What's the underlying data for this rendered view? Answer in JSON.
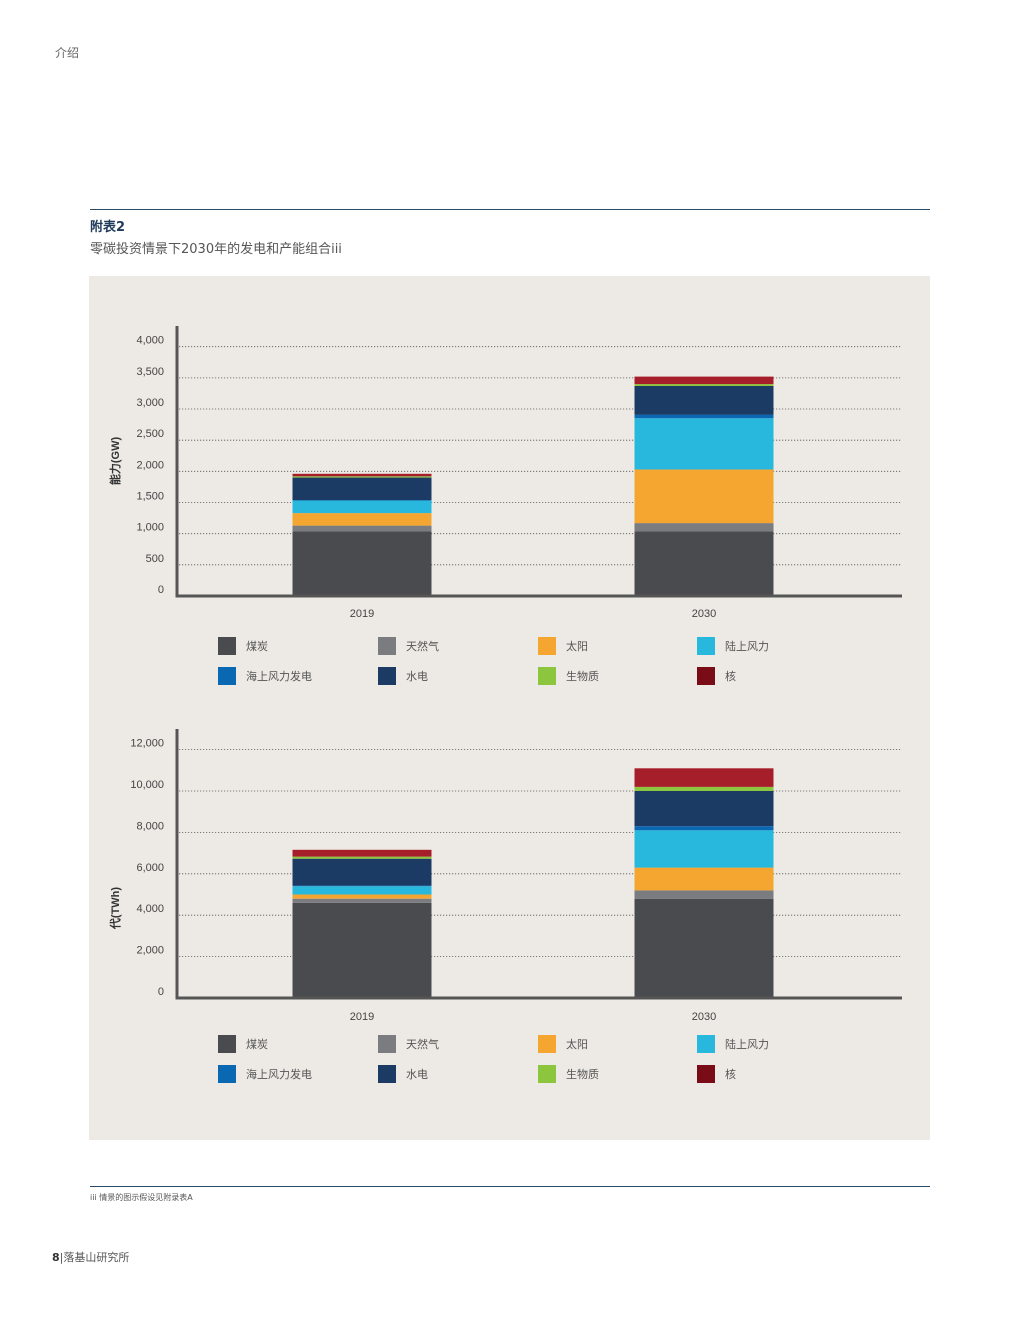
{
  "header": {
    "section": "介绍"
  },
  "figure": {
    "label": "附表2",
    "title": "零碳投资情景下2030年的发电和产能组合iii"
  },
  "colors": {
    "coal": "#4a4b4e",
    "gas": "#7b7c80",
    "solar": "#f5a631",
    "onshore_wind": "#28b8de",
    "offshore_wind": "#0a67b1",
    "hydro": "#1b3a64",
    "biomass": "#8cc63f",
    "nuclear": "#a71e2b",
    "nuclear_legend": "#7a0c18"
  },
  "chart_data": [
    {
      "type": "bar",
      "stacked": true,
      "ylabel": "能力(GW)",
      "categories": [
        "2019",
        "2030"
      ],
      "yticks": [
        "0",
        "500",
        "1,000",
        "1,500",
        "2,000",
        "2,500",
        "3,000",
        "3,500",
        "4,000"
      ],
      "ylim": [
        0,
        4300
      ],
      "grid": true,
      "series": [
        {
          "name": "煤炭",
          "key": "coal",
          "values": [
            1040,
            1040
          ]
        },
        {
          "name": "天然气",
          "key": "gas",
          "values": [
            90,
            130
          ]
        },
        {
          "name": "太阳",
          "key": "solar",
          "values": [
            200,
            860
          ]
        },
        {
          "name": "陆上风力",
          "key": "onshore_wind",
          "values": [
            200,
            820
          ]
        },
        {
          "name": "海上风力发电",
          "key": "offshore_wind",
          "values": [
            10,
            60
          ]
        },
        {
          "name": "水电",
          "key": "hydro",
          "values": [
            360,
            460
          ]
        },
        {
          "name": "生物质",
          "key": "biomass",
          "values": [
            20,
            30
          ]
        },
        {
          "name": "核",
          "key": "nuclear",
          "values": [
            40,
            120
          ]
        }
      ]
    },
    {
      "type": "bar",
      "stacked": true,
      "ylabel": "代(TWh)",
      "categories": [
        "2019",
        "2030"
      ],
      "yticks": [
        "0",
        "2,000",
        "4,000",
        "6,000",
        "8,000",
        "10,000",
        "12,000"
      ],
      "ylim": [
        0,
        12900
      ],
      "grid": true,
      "series": [
        {
          "name": "煤炭",
          "key": "coal",
          "values": [
            4600,
            4800
          ]
        },
        {
          "name": "天然气",
          "key": "gas",
          "values": [
            200,
            400
          ]
        },
        {
          "name": "太阳",
          "key": "solar",
          "values": [
            200,
            1100
          ]
        },
        {
          "name": "陆上风力",
          "key": "onshore_wind",
          "values": [
            400,
            1800
          ]
        },
        {
          "name": "海上风力发电",
          "key": "offshore_wind",
          "values": [
            30,
            200
          ]
        },
        {
          "name": "水电",
          "key": "hydro",
          "values": [
            1300,
            1700
          ]
        },
        {
          "name": "生物质",
          "key": "biomass",
          "values": [
            100,
            200
          ]
        },
        {
          "name": "核",
          "key": "nuclear",
          "values": [
            330,
            900
          ]
        }
      ]
    }
  ],
  "legend": [
    {
      "label": "煤炭",
      "key": "coal"
    },
    {
      "label": "天然气",
      "key": "gas"
    },
    {
      "label": "太阳",
      "key": "solar"
    },
    {
      "label": "陆上风力",
      "key": "onshore_wind"
    },
    {
      "label": "海上风力发电",
      "key": "offshore_wind"
    },
    {
      "label": "水电",
      "key": "hydro"
    },
    {
      "label": "生物质",
      "key": "biomass"
    },
    {
      "label": "核",
      "key": "nuclear_legend"
    }
  ],
  "footnote": "iii 情景的图示假设见附录表A",
  "footer": {
    "page_number": "8",
    "separator": "|",
    "org": "落基山研究所"
  }
}
